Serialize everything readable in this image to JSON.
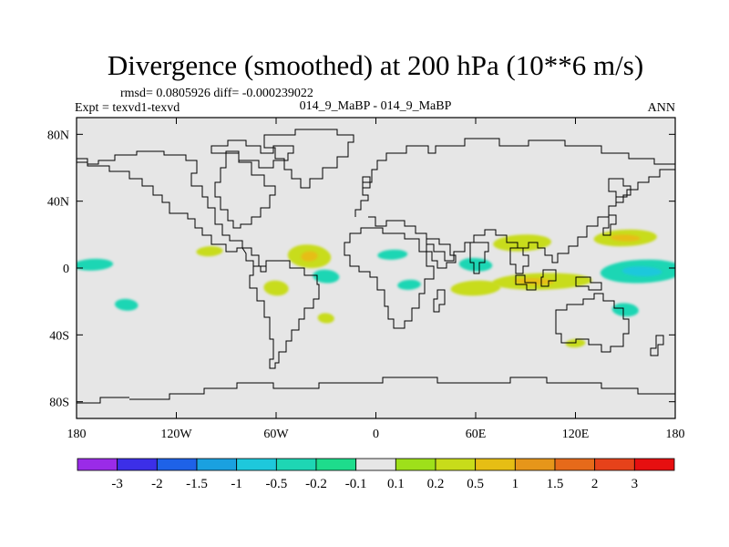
{
  "chart_data": {
    "type": "heatmap",
    "title": "Divergence (smoothed) at 200 hPa (10**6 m/s)",
    "stats": "rmsd= 0.0805926 diff= -0.000239022",
    "left_label": "Expt = texvd1-texvd",
    "center_label": "014_9_MaBP - 014_9_MaBP",
    "right_label": "ANN",
    "projection": "cylindrical equidistant",
    "xlim": [
      -180,
      180
    ],
    "ylim": [
      -90,
      90
    ],
    "x_ticks": [
      {
        "value": -180,
        "label": "180"
      },
      {
        "value": -120,
        "label": "120W"
      },
      {
        "value": -60,
        "label": "60W"
      },
      {
        "value": 0,
        "label": "0"
      },
      {
        "value": 60,
        "label": "60E"
      },
      {
        "value": 120,
        "label": "120E"
      },
      {
        "value": 180,
        "label": "180"
      }
    ],
    "y_ticks": [
      {
        "value": 80,
        "label": "80N"
      },
      {
        "value": 40,
        "label": "40N"
      },
      {
        "value": 0,
        "label": "0"
      },
      {
        "value": -40,
        "label": "40S"
      },
      {
        "value": -80,
        "label": "80S"
      }
    ],
    "colorbar": {
      "boundaries": [
        "-3",
        "-2",
        "-1.5",
        "-1",
        "-0.5",
        "-0.2",
        "-0.1",
        "0.1",
        "0.2",
        "0.5",
        "1",
        "1.5",
        "2",
        "3"
      ],
      "colors": [
        "#9a2be8",
        "#3c2fe8",
        "#1e62e8",
        "#1aa1e0",
        "#1ec8dc",
        "#1ed6b4",
        "#1edc8c",
        "#e6e6e6",
        "#9ee01a",
        "#c8dc1a",
        "#e6be14",
        "#e6961a",
        "#e66a1a",
        "#e6421a",
        "#e60f10"
      ]
    },
    "fields": [
      {
        "region": "tropical Pacific, western",
        "lon": 160,
        "lat": -2,
        "lon_extent": 50,
        "lat_extent": 14,
        "value": -0.25
      },
      {
        "region": "tropical Pacific, core",
        "lon": 160,
        "lat": -2,
        "lon_extent": 24,
        "lat_extent": 6,
        "value": -0.6
      },
      {
        "region": "NW Pacific band",
        "lon": 150,
        "lat": 18,
        "lon_extent": 38,
        "lat_extent": 10,
        "value": 0.3
      },
      {
        "region": "NW Pacific core",
        "lon": 150,
        "lat": 18,
        "lon_extent": 18,
        "lat_extent": 4,
        "value": 0.7
      },
      {
        "region": "Maritime Continent",
        "lon": 100,
        "lat": -8,
        "lon_extent": 60,
        "lat_extent": 10,
        "value": 0.3
      },
      {
        "region": "Maritime Continent core",
        "lon": 95,
        "lat": -8,
        "lon_extent": 24,
        "lat_extent": 4,
        "value": 0.7
      },
      {
        "region": "Indian Ocean",
        "lon": 60,
        "lat": -12,
        "lon_extent": 30,
        "lat_extent": 9,
        "value": 0.2
      },
      {
        "region": "Arabian Sea",
        "lon": 60,
        "lat": 2,
        "lon_extent": 20,
        "lat_extent": 8,
        "value": -0.3
      },
      {
        "region": "South Asia",
        "lon": 88,
        "lat": 15,
        "lon_extent": 35,
        "lat_extent": 10,
        "value": 0.25
      },
      {
        "region": "southwest Pacific",
        "lon": 150,
        "lat": -25,
        "lon_extent": 16,
        "lat_extent": 8,
        "value": -0.3
      },
      {
        "region": "central Pacific",
        "lon": -170,
        "lat": 2,
        "lon_extent": 24,
        "lat_extent": 7,
        "value": -0.3
      },
      {
        "region": "western Atlantic",
        "lon": -40,
        "lat": 7,
        "lon_extent": 26,
        "lat_extent": 14,
        "value": 0.3
      },
      {
        "region": "western Atlantic core",
        "lon": -40,
        "lat": 7,
        "lon_extent": 10,
        "lat_extent": 6,
        "value": 0.7
      },
      {
        "region": "tropical Atlantic",
        "lon": -30,
        "lat": -5,
        "lon_extent": 16,
        "lat_extent": 8,
        "value": -0.4
      },
      {
        "region": "West Africa",
        "lon": 10,
        "lat": 8,
        "lon_extent": 18,
        "lat_extent": 6,
        "value": -0.3
      },
      {
        "region": "South America",
        "lon": -60,
        "lat": -12,
        "lon_extent": 15,
        "lat_extent": 9,
        "value": 0.25
      },
      {
        "region": "eastern Pacific",
        "lon": -100,
        "lat": 10,
        "lon_extent": 16,
        "lat_extent": 6,
        "value": 0.25
      },
      {
        "region": "South Pacific",
        "lon": -150,
        "lat": -22,
        "lon_extent": 14,
        "lat_extent": 7,
        "value": -0.3
      },
      {
        "region": "Gulf of Guinea",
        "lon": 20,
        "lat": -10,
        "lon_extent": 14,
        "lat_extent": 6,
        "value": -0.3
      },
      {
        "region": "South Atlantic",
        "lon": -30,
        "lat": -30,
        "lon_extent": 10,
        "lat_extent": 6,
        "value": 0.2
      },
      {
        "region": "southern Indian Ocean",
        "lon": 120,
        "lat": -45,
        "lon_extent": 12,
        "lat_extent": 5,
        "value": 0.2
      }
    ]
  }
}
